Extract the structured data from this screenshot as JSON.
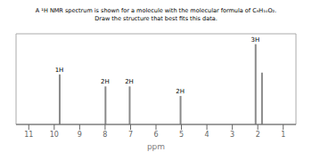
{
  "chart_data": {
    "type": "bar",
    "title": "A ¹H NMR spectrum is shown for a molecule with the molecular formula of C₉H₁₀O₂.",
    "subtitle": "Draw the structure that best fits this data.",
    "xlabel": "ppm",
    "x": [
      9.8,
      8.0,
      7.05,
      5.05,
      2.1,
      1.85
    ],
    "values": [
      0.58,
      0.44,
      0.44,
      0.33,
      0.93,
      0.6
    ],
    "color": "#8a8a8a",
    "xlim": [
      11.5,
      0.5
    ],
    "ylim": [
      0,
      1.05
    ],
    "xticks": [
      11,
      10,
      9,
      8,
      7,
      6,
      5,
      4,
      3,
      2,
      1
    ],
    "tick_labels": "x",
    "annotations": [
      {
        "x": 9.8,
        "y": 0.58,
        "text": "1H"
      },
      {
        "x": 8.0,
        "y": 0.44,
        "text": "2H"
      },
      {
        "x": 7.05,
        "y": 0.44,
        "text": "2H"
      },
      {
        "x": 5.05,
        "y": 0.33,
        "text": "2H"
      },
      {
        "x": 2.1,
        "y": 0.93,
        "text": "3H"
      }
    ]
  }
}
